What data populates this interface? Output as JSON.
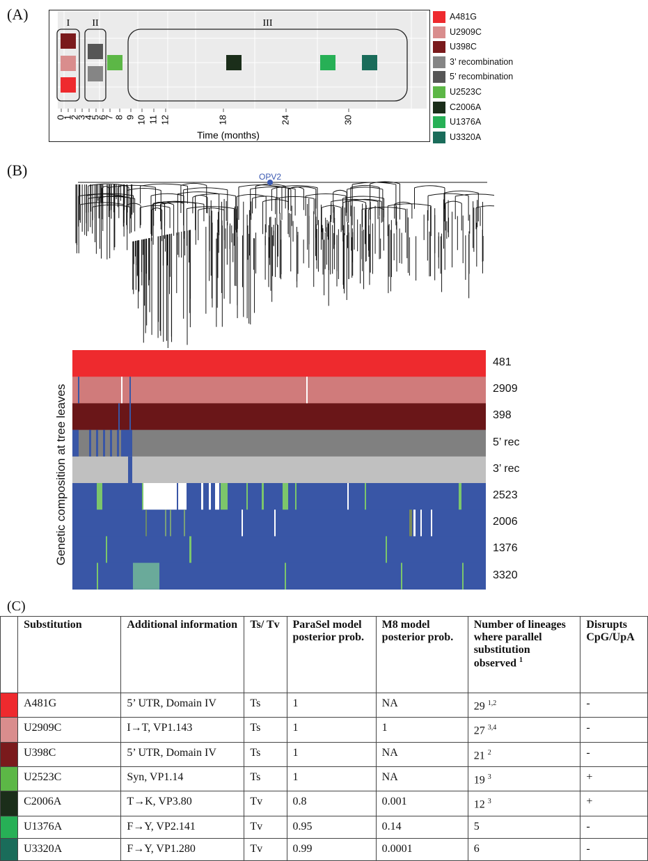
{
  "panel_a": {
    "label": "(A)",
    "x_axis_label": "Time (months)",
    "x_ticks": [
      "0",
      "1",
      "2",
      "3",
      "4",
      "5",
      "6",
      "7",
      "8",
      "9",
      "10",
      "11",
      "12",
      "18",
      "24",
      "30"
    ],
    "groups": [
      "I",
      "II",
      "III"
    ],
    "legend": [
      {
        "label": "A481G",
        "color": "#ee2a2e"
      },
      {
        "label": "U2909C",
        "color": "#d98d8d"
      },
      {
        "label": "U398C",
        "color": "#7a1a1c"
      },
      {
        "label": "3’ recombination",
        "color": "#858585"
      },
      {
        "label": "5’ recombination",
        "color": "#565656"
      },
      {
        "label": "U2523C",
        "color": "#5cb746"
      },
      {
        "label": "C2006A",
        "color": "#1b2e1a"
      },
      {
        "label": "U1376A",
        "color": "#27b056"
      },
      {
        "label": "U3320A",
        "color": "#1a6c5a"
      }
    ],
    "events": [
      {
        "mutation": "U398C",
        "month": 1,
        "group": "I"
      },
      {
        "mutation": "U2909C",
        "month": 1,
        "group": "I"
      },
      {
        "mutation": "A481G",
        "month": 1,
        "group": "I"
      },
      {
        "mutation": "5’ recombination",
        "month": 3.5,
        "group": "II"
      },
      {
        "mutation": "3’ recombination",
        "month": 3.5,
        "group": "II"
      },
      {
        "mutation": "U2523C",
        "month": 7.5,
        "group": "III"
      },
      {
        "mutation": "C2006A",
        "month": 19,
        "group": "III"
      },
      {
        "mutation": "U1376A",
        "month": 28,
        "group": "III"
      },
      {
        "mutation": "U3320A",
        "month": 32,
        "group": "III"
      }
    ]
  },
  "panel_b": {
    "label": "(B)",
    "root_label": "OPV2",
    "y_axis_label": "Genetic composition at tree leaves",
    "rows": [
      "481",
      "2909",
      "398",
      "5’ rec",
      "3’ rec",
      "2523",
      "2006",
      "1376",
      "3320"
    ]
  },
  "panel_c": {
    "label": "(C)",
    "headers": [
      "Substitution",
      "Additional information",
      "Ts/ Tv",
      "ParaSel model posterior prob.",
      "M8 model posterior prob.",
      "Number of lineages where parallel substitution observed",
      "Disrupts CpG/UpA"
    ],
    "header_footnote": "1",
    "rows": [
      {
        "color": "#ee2a2e",
        "substitution": "A481G",
        "info": "5’ UTR, Domain IV",
        "tstv": "Ts",
        "parasel": "1",
        "m8": "NA",
        "lineages": "29",
        "sup": "1,2",
        "cpg": "-"
      },
      {
        "color": "#d98d8d",
        "substitution": "U2909C",
        "info": "I→T, VP1.143",
        "tstv": "Ts",
        "parasel": "1",
        "m8": "1",
        "lineages": "27",
        "sup": "3,4",
        "cpg": "-"
      },
      {
        "color": "#7a1a1c",
        "substitution": "U398C",
        "info": "5’ UTR, Domain IV",
        "tstv": "Ts",
        "parasel": "1",
        "m8": "NA",
        "lineages": "21",
        "sup": "2",
        "cpg": "-"
      },
      {
        "color": "#5cb746",
        "substitution": "U2523C",
        "info": "Syn, VP1.14",
        "tstv": "Ts",
        "parasel": "1",
        "m8": "NA",
        "lineages": "19",
        "sup": "3",
        "cpg": "+"
      },
      {
        "color": "#1b2e1a",
        "substitution": "C2006A",
        "info": "T→K, VP3.80",
        "tstv": "Tv",
        "parasel": "0.8",
        "m8": "0.001",
        "lineages": "12",
        "sup": "3",
        "cpg": "+"
      },
      {
        "color": "#27b056",
        "substitution": "U1376A",
        "info": "F→Y, VP2.141",
        "tstv": "Tv",
        "parasel": "0.95",
        "m8": "0.14",
        "lineages": "5",
        "sup": "",
        "cpg": "-"
      },
      {
        "color": "#1a6c5a",
        "substitution": "U3320A",
        "info": "F→Y, VP1.280",
        "tstv": "Tv",
        "parasel": "0.99",
        "m8": "0.0001",
        "lineages": "6",
        "sup": "",
        "cpg": "-"
      }
    ]
  }
}
